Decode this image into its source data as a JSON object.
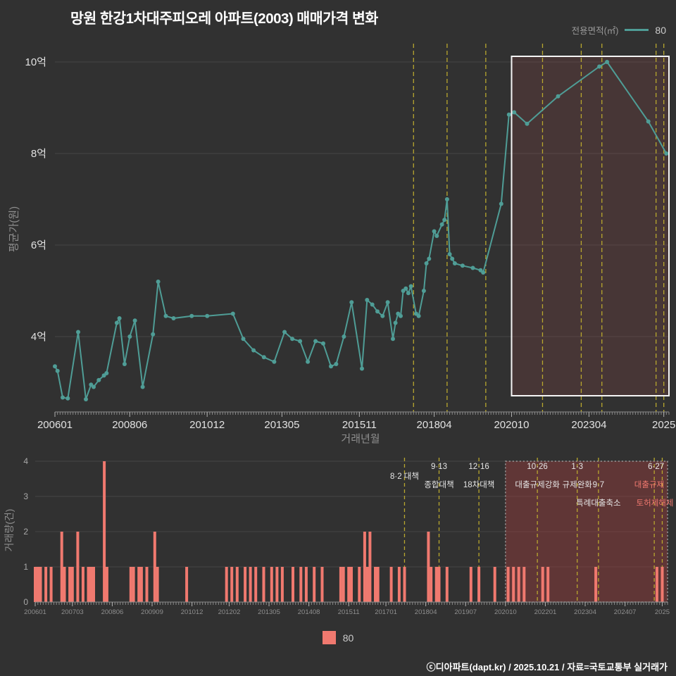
{
  "page": {
    "title": "망원 한강1차대주피오레 아파트(2003) 매매가격 변화",
    "footer": "ⓒ디아파트(dapt.kr) / 2025.10.21 / 자료=국토교통부 실거래가",
    "background": "#313131"
  },
  "legend_top": {
    "label": "전용면적(㎡)",
    "series_label": "80"
  },
  "legend_bottom": {
    "series_label": "80"
  },
  "colors": {
    "line": "#4f9d96",
    "bar": "#f0796f",
    "policy": "#b8a72e",
    "grid": "#454545",
    "axis": "#8a8a8a",
    "tick_label": "#e2e2e2",
    "box_fill": "rgba(170,75,75,0.18)",
    "box_stroke": "#f5f5f5",
    "vol_box_fill": "rgba(163,62,62,0.42)",
    "vol_box_stroke": "#9a9a9a",
    "annotation": "#e6e6e6"
  },
  "chart_data": [
    {
      "type": "line",
      "name": "매매가격 변화",
      "xlabel": "거래년월",
      "ylabel": "평균가(원)",
      "unit": "억",
      "ylim": [
        2.2,
        10.6
      ],
      "yticks": [
        {
          "value": 4,
          "label": "4억"
        },
        {
          "value": 6,
          "label": "6억"
        },
        {
          "value": 8,
          "label": "8억"
        },
        {
          "value": 10,
          "label": "10억"
        }
      ],
      "xticks": [
        {
          "date": "2006-01",
          "label": "200601"
        },
        {
          "date": "2008-06",
          "label": "200806"
        },
        {
          "date": "2010-12",
          "label": "201012"
        },
        {
          "date": "2013-05",
          "label": "201305"
        },
        {
          "date": "2015-11",
          "label": "201511"
        },
        {
          "date": "2018-04",
          "label": "201804"
        },
        {
          "date": "2020-10",
          "label": "202010"
        },
        {
          "date": "2023-04",
          "label": "202304"
        },
        {
          "date": "2025-09",
          "label": "2025"
        }
      ],
      "policy_dates": [
        "2017-08",
        "2018-09",
        "2019-12",
        "2021-10",
        "2023-01",
        "2023-09",
        "2025-06",
        "2025-09"
      ],
      "highlight_from": "2020-10",
      "series": [
        {
          "name": "80",
          "points": [
            [
              "2006-01",
              3.35
            ],
            [
              "2006-02",
              3.25
            ],
            [
              "2006-04",
              2.67
            ],
            [
              "2006-06",
              2.65
            ],
            [
              "2006-10",
              4.1
            ],
            [
              "2007-01",
              2.63
            ],
            [
              "2007-03",
              2.95
            ],
            [
              "2007-04",
              2.9
            ],
            [
              "2007-06",
              3.05
            ],
            [
              "2007-08",
              3.15
            ],
            [
              "2007-09",
              3.2
            ],
            [
              "2008-01",
              4.3
            ],
            [
              "2008-02",
              4.4
            ],
            [
              "2008-04",
              3.4
            ],
            [
              "2008-06",
              4.0
            ],
            [
              "2008-08",
              4.35
            ],
            [
              "2008-11",
              2.9
            ],
            [
              "2009-03",
              4.05
            ],
            [
              "2009-05",
              5.2
            ],
            [
              "2009-08",
              4.45
            ],
            [
              "2009-11",
              4.4
            ],
            [
              "2010-06",
              4.45
            ],
            [
              "2010-12",
              4.45
            ],
            [
              "2011-10",
              4.5
            ],
            [
              "2012-02",
              3.95
            ],
            [
              "2012-06",
              3.7
            ],
            [
              "2012-10",
              3.55
            ],
            [
              "2013-02",
              3.45
            ],
            [
              "2013-06",
              4.1
            ],
            [
              "2013-09",
              3.95
            ],
            [
              "2013-12",
              3.9
            ],
            [
              "2014-03",
              3.45
            ],
            [
              "2014-06",
              3.9
            ],
            [
              "2014-09",
              3.85
            ],
            [
              "2014-12",
              3.35
            ],
            [
              "2015-02",
              3.4
            ],
            [
              "2015-05",
              4.0
            ],
            [
              "2015-08",
              4.75
            ],
            [
              "2015-12",
              3.3
            ],
            [
              "2016-02",
              4.8
            ],
            [
              "2016-04",
              4.7
            ],
            [
              "2016-06",
              4.55
            ],
            [
              "2016-08",
              4.45
            ],
            [
              "2016-10",
              4.75
            ],
            [
              "2016-12",
              3.95
            ],
            [
              "2017-01",
              4.3
            ],
            [
              "2017-02",
              4.5
            ],
            [
              "2017-03",
              4.45
            ],
            [
              "2017-04",
              5.0
            ],
            [
              "2017-05",
              5.05
            ],
            [
              "2017-06",
              4.95
            ],
            [
              "2017-07",
              5.1
            ],
            [
              "2017-09",
              4.5
            ],
            [
              "2017-10",
              4.45
            ],
            [
              "2017-12",
              5.0
            ],
            [
              "2018-01",
              5.6
            ],
            [
              "2018-02",
              5.7
            ],
            [
              "2018-04",
              6.3
            ],
            [
              "2018-05",
              6.2
            ],
            [
              "2018-07",
              6.45
            ],
            [
              "2018-08",
              6.55
            ],
            [
              "2018-09",
              7.0
            ],
            [
              "2018-10",
              5.8
            ],
            [
              "2018-11",
              5.7
            ],
            [
              "2018-12",
              5.6
            ],
            [
              "2019-03",
              5.55
            ],
            [
              "2019-07",
              5.5
            ],
            [
              "2019-10",
              5.45
            ],
            [
              "2019-11",
              5.4
            ],
            [
              "2020-06",
              6.9
            ],
            [
              "2020-09",
              8.85
            ],
            [
              "2020-11",
              8.9
            ],
            [
              "2021-04",
              8.65
            ],
            [
              "2022-04",
              9.25
            ],
            [
              "2023-08",
              9.9
            ],
            [
              "2023-11",
              10.0
            ],
            [
              "2025-03",
              8.7
            ],
            [
              "2025-10",
              8.0
            ]
          ]
        }
      ]
    },
    {
      "type": "bar",
      "name": "거래량",
      "ylabel": "거래량(건)",
      "ylim": [
        0,
        4
      ],
      "yticks": [
        0,
        1,
        2,
        3,
        4
      ],
      "xticks": [
        {
          "date": "2006-01",
          "label": "200601"
        },
        {
          "date": "2007-03",
          "label": "200703"
        },
        {
          "date": "2008-06",
          "label": "200806"
        },
        {
          "date": "2009-09",
          "label": "200909"
        },
        {
          "date": "2010-12",
          "label": "201012"
        },
        {
          "date": "2012-02",
          "label": "201202"
        },
        {
          "date": "2013-05",
          "label": "201305"
        },
        {
          "date": "2014-08",
          "label": "201408"
        },
        {
          "date": "2015-11",
          "label": "201511"
        },
        {
          "date": "2017-01",
          "label": "201701"
        },
        {
          "date": "2018-04",
          "label": "201804"
        },
        {
          "date": "2019-07",
          "label": "201907"
        },
        {
          "date": "2020-10",
          "label": "202010"
        },
        {
          "date": "2022-01",
          "label": "202201"
        },
        {
          "date": "2023-04",
          "label": "202304"
        },
        {
          "date": "2024-07",
          "label": "202407"
        },
        {
          "date": "2025-09",
          "label": "2025"
        }
      ],
      "highlight_from": "2020-10",
      "series": [
        {
          "name": "80",
          "values": [
            [
              "2006-01",
              1
            ],
            [
              "2006-02",
              1
            ],
            [
              "2006-03",
              1
            ],
            [
              "2006-05",
              1
            ],
            [
              "2006-07",
              1
            ],
            [
              "2006-11",
              2
            ],
            [
              "2006-12",
              1
            ],
            [
              "2007-02",
              1
            ],
            [
              "2007-03",
              1
            ],
            [
              "2007-05",
              2
            ],
            [
              "2007-07",
              1
            ],
            [
              "2007-09",
              1
            ],
            [
              "2007-10",
              1
            ],
            [
              "2007-11",
              1
            ],
            [
              "2008-03",
              4
            ],
            [
              "2008-04",
              1
            ],
            [
              "2009-01",
              1
            ],
            [
              "2009-02",
              1
            ],
            [
              "2009-04",
              1
            ],
            [
              "2009-05",
              1
            ],
            [
              "2009-07",
              1
            ],
            [
              "2009-10",
              2
            ],
            [
              "2009-11",
              1
            ],
            [
              "2010-10",
              1
            ],
            [
              "2012-01",
              1
            ],
            [
              "2012-03",
              1
            ],
            [
              "2012-05",
              1
            ],
            [
              "2012-08",
              1
            ],
            [
              "2012-10",
              1
            ],
            [
              "2012-12",
              1
            ],
            [
              "2013-03",
              1
            ],
            [
              "2013-06",
              1
            ],
            [
              "2013-08",
              1
            ],
            [
              "2013-10",
              1
            ],
            [
              "2014-02",
              1
            ],
            [
              "2014-05",
              1
            ],
            [
              "2014-07",
              1
            ],
            [
              "2014-10",
              1
            ],
            [
              "2015-01",
              1
            ],
            [
              "2015-08",
              1
            ],
            [
              "2015-09",
              1
            ],
            [
              "2015-11",
              1
            ],
            [
              "2015-12",
              1
            ],
            [
              "2016-03",
              1
            ],
            [
              "2016-05",
              2
            ],
            [
              "2016-06",
              1
            ],
            [
              "2016-07",
              2
            ],
            [
              "2016-09",
              1
            ],
            [
              "2016-10",
              1
            ],
            [
              "2017-03",
              1
            ],
            [
              "2017-06",
              1
            ],
            [
              "2017-08",
              1
            ],
            [
              "2018-05",
              2
            ],
            [
              "2018-06",
              1
            ],
            [
              "2018-08",
              1
            ],
            [
              "2018-09",
              1
            ],
            [
              "2018-12",
              1
            ],
            [
              "2019-09",
              1
            ],
            [
              "2019-12",
              1
            ],
            [
              "2020-06",
              1
            ],
            [
              "2020-11",
              1
            ],
            [
              "2021-01",
              1
            ],
            [
              "2021-03",
              1
            ],
            [
              "2021-05",
              1
            ],
            [
              "2021-12",
              1
            ],
            [
              "2022-02",
              1
            ],
            [
              "2023-08",
              1
            ],
            [
              "2025-07",
              1
            ],
            [
              "2025-09",
              1
            ]
          ]
        }
      ],
      "annotations": [
        {
          "date": "2017-08",
          "labels": [
            {
              "text": "8·2 대책",
              "row": 0.55
            }
          ]
        },
        {
          "date": "2018-09",
          "labels": [
            {
              "text": "9·13",
              "row": 0
            },
            {
              "text": "종합대책",
              "row": 1
            }
          ]
        },
        {
          "date": "2019-12",
          "labels": [
            {
              "text": "12·16",
              "row": 0
            },
            {
              "text": "18차대책",
              "row": 1
            }
          ]
        },
        {
          "date": "2021-10",
          "labels": [
            {
              "text": "10·26",
              "row": 0
            },
            {
              "text": "대출규제강화",
              "row": 1
            }
          ]
        },
        {
          "date": "2023-01",
          "labels": [
            {
              "text": "1·3",
              "row": 0
            },
            {
              "text": "규제완화",
              "row": 1
            }
          ]
        },
        {
          "date": "2023-09",
          "labels": [
            {
              "text": "9·7",
              "row": 1
            },
            {
              "text": "특례대출축소",
              "row": 2
            }
          ]
        },
        {
          "date": "2025-06",
          "anchor": "end",
          "dx": 14,
          "labels": [
            {
              "text": "6·27",
              "row": 0
            },
            {
              "text": "대출규제",
              "row": 1,
              "color": "#f0796f"
            }
          ]
        },
        {
          "date": "2025-09",
          "anchor": "end",
          "dx": 16,
          "labels": [
            {
              "text": "토허제해제",
              "row": 2,
              "color": "#f0796f"
            }
          ]
        }
      ]
    }
  ]
}
